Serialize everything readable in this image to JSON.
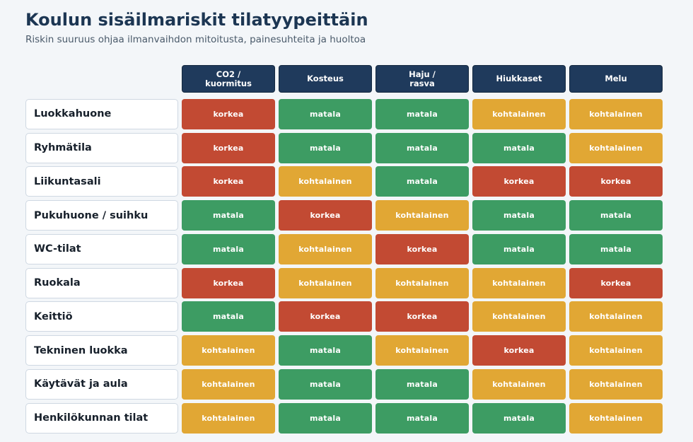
{
  "title": "Koulun sisäilmariskit tilatyypeittäin",
  "subtitle": "Riskin suuruus ohjaa ilmanvaihdon mitoitusta, painesuhteita ja huoltoa",
  "level_colors": {
    "korkea": "#c24a33",
    "kohtalainen": "#e1a734",
    "matala": "#3d9c63"
  },
  "chart_data": {
    "type": "heatmap",
    "title": "Koulun sisäilmariskit tilatyypeittäin",
    "subtitle": "Riskin suuruus ohjaa ilmanvaihdon mitoitusta, painesuhteita ja huoltoa",
    "columns": [
      "CO2 /\nkuormitus",
      "Kosteus",
      "Haju /\nrasva",
      "Hiukkaset",
      "Melu"
    ],
    "rows": [
      "Luokkahuone",
      "Ryhmätila",
      "Liikuntasali",
      "Pukuhuone / suihku",
      "WC-tilat",
      "Ruokala",
      "Keittiö",
      "Tekninen luokka",
      "Käytävät ja aula",
      "Henkilökunnan tilat"
    ],
    "values": [
      [
        "korkea",
        "matala",
        "matala",
        "kohtalainen",
        "kohtalainen"
      ],
      [
        "korkea",
        "matala",
        "matala",
        "matala",
        "kohtalainen"
      ],
      [
        "korkea",
        "kohtalainen",
        "matala",
        "korkea",
        "korkea"
      ],
      [
        "matala",
        "korkea",
        "kohtalainen",
        "matala",
        "matala"
      ],
      [
        "matala",
        "kohtalainen",
        "korkea",
        "matala",
        "matala"
      ],
      [
        "korkea",
        "kohtalainen",
        "kohtalainen",
        "kohtalainen",
        "korkea"
      ],
      [
        "matala",
        "korkea",
        "korkea",
        "kohtalainen",
        "kohtalainen"
      ],
      [
        "kohtalainen",
        "matala",
        "kohtalainen",
        "korkea",
        "kohtalainen"
      ],
      [
        "kohtalainen",
        "matala",
        "matala",
        "kohtalainen",
        "kohtalainen"
      ],
      [
        "kohtalainen",
        "matala",
        "matala",
        "matala",
        "kohtalainen"
      ]
    ]
  }
}
